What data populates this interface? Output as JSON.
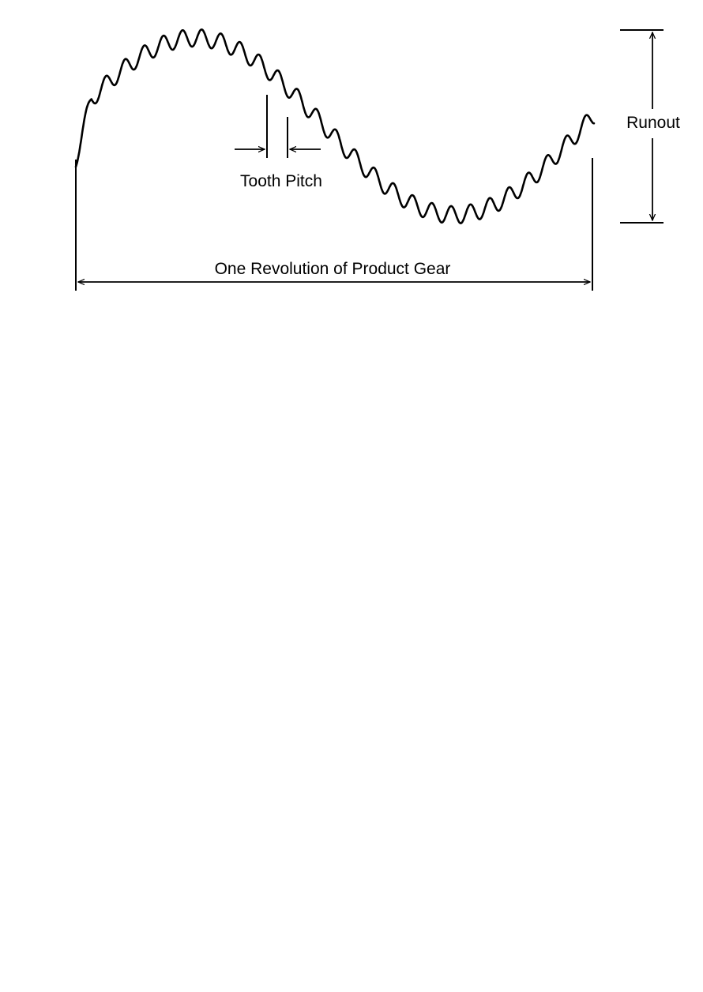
{
  "labels": {
    "runout": "Runout",
    "tooth_pitch": "Tooth Pitch",
    "one_revolution": "One Revolution of Product Gear"
  },
  "waveform": {
    "tooth_count": 27,
    "description_shown": false
  },
  "colors": {
    "ink": "#000000",
    "background": "#ffffff"
  }
}
